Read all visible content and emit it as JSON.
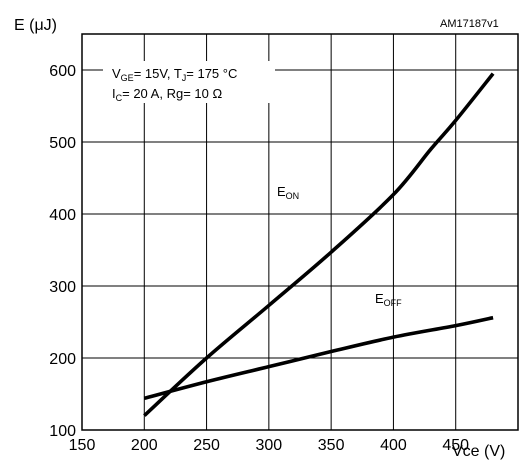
{
  "figure_id": "AM17187v1",
  "conditions": {
    "line1": [
      {
        "text": "V",
        "sub": false
      },
      {
        "text": "GE",
        "sub": true
      },
      {
        "text": "= 15V, T",
        "sub": false
      },
      {
        "text": "J",
        "sub": true
      },
      {
        "text": "= 175 °C",
        "sub": false
      }
    ],
    "line2": [
      {
        "text": "I",
        "sub": false
      },
      {
        "text": "C",
        "sub": true
      },
      {
        "text": "= 20 A, Rg= 10 Ω",
        "sub": false
      }
    ]
  },
  "chart_data": {
    "type": "line",
    "xlabel": "Vce (V)",
    "ylabel": "E (μJ)",
    "xlim": [
      150,
      500
    ],
    "ylim": [
      100,
      650
    ],
    "x_ticks": [
      150,
      200,
      250,
      300,
      350,
      400,
      450
    ],
    "y_ticks": [
      100,
      200,
      300,
      400,
      500,
      600
    ],
    "grid": true,
    "series": [
      {
        "name": "EON",
        "label_main": "E",
        "label_sub": "ON",
        "x": [
          200,
          250,
          300,
          350,
          400,
          430,
          450,
          480
        ],
        "y": [
          120,
          200,
          273,
          347,
          427,
          490,
          530,
          595
        ]
      },
      {
        "name": "EOFF",
        "label_main": "E",
        "label_sub": "OFF",
        "x": [
          200,
          250,
          300,
          350,
          400,
          450,
          480
        ],
        "y": [
          144,
          167,
          188,
          209,
          229,
          245,
          256
        ]
      }
    ]
  }
}
